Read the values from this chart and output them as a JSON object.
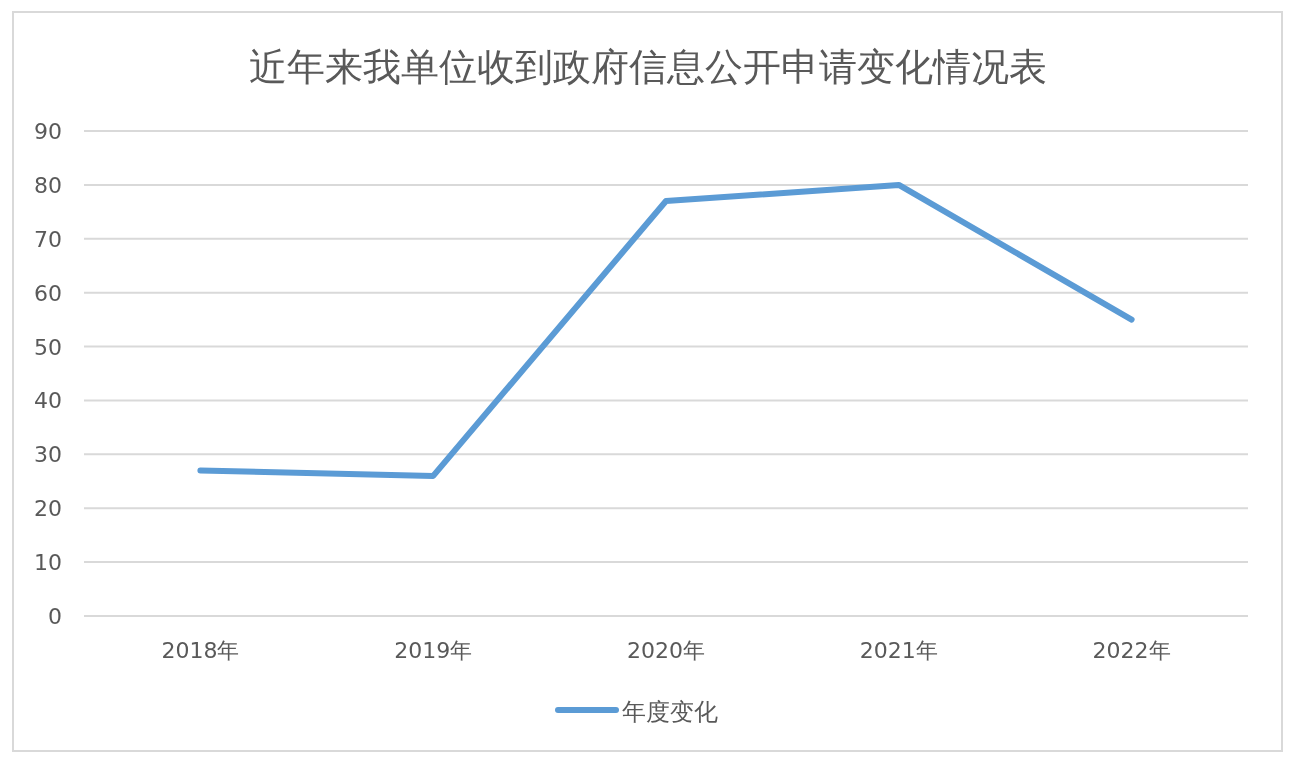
{
  "chart_data": {
    "type": "line",
    "title": "近年来我单位收到政府信息公开申请变化情况表",
    "categories": [
      "2018年",
      "2019年",
      "2020年",
      "2021年",
      "2022年"
    ],
    "series": [
      {
        "name": "年度变化",
        "color": "#5b9bd5",
        "values": [
          27,
          26,
          77,
          80,
          55
        ]
      }
    ],
    "ylim": [
      0,
      90
    ],
    "yticks": [
      0,
      10,
      20,
      30,
      40,
      50,
      60,
      70,
      80,
      90
    ],
    "grid": "y",
    "legend": "bottom"
  }
}
